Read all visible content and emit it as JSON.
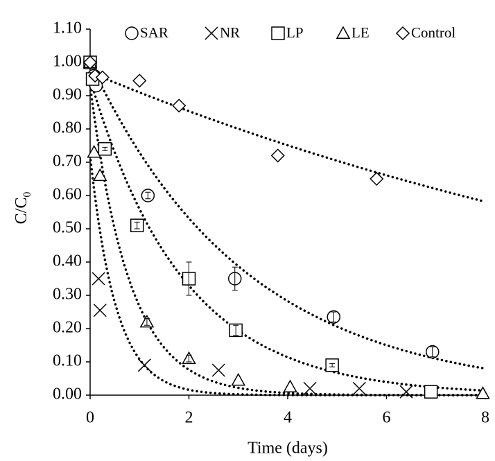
{
  "chart_data": {
    "type": "scatter",
    "xlabel": "Time (days)",
    "ylabel": "C/C",
    "ylabel_sub": "0",
    "xlim": [
      0,
      8
    ],
    "xticks": [
      0,
      2,
      4,
      6,
      8
    ],
    "ylim": [
      0,
      1.1
    ],
    "yticks": [
      {
        "value": 0,
        "label": "0.00"
      },
      {
        "value": 0.1,
        "label": "0.10"
      },
      {
        "value": 0.2,
        "label": "0.20"
      },
      {
        "value": 0.3,
        "label": "0.30"
      },
      {
        "value": 0.4,
        "label": "0.40"
      },
      {
        "value": 0.5,
        "label": "0.50"
      },
      {
        "value": 0.6,
        "label": "0.60"
      },
      {
        "value": 0.7,
        "label": "0.70"
      },
      {
        "value": 0.8,
        "label": "0.80"
      },
      {
        "value": 0.9,
        "label": "0.90"
      },
      {
        "value": 1.0,
        "label": "1.00"
      },
      {
        "value": 1.1,
        "label": "1.10"
      }
    ],
    "legend": "top",
    "series": [
      {
        "name": "SAR",
        "marker": "circle",
        "color": "#000000",
        "x": [
          0,
          0.08,
          0.12,
          1.17,
          2.93,
          4.93,
          6.93
        ],
        "values": [
          1.0,
          0.96,
          0.93,
          0.6,
          0.35,
          0.235,
          0.13
        ],
        "errors": [
          null,
          null,
          null,
          0.01,
          0.035,
          0.015,
          0.015
        ],
        "fit": {
          "a": 1.0,
          "k": 0.316
        }
      },
      {
        "name": "NR",
        "marker": "x",
        "color": "#000000",
        "x": [
          0,
          0.17,
          0.2,
          1.1,
          2.6,
          4.45,
          5.45,
          6.4
        ],
        "values": [
          1.0,
          0.35,
          0.255,
          0.09,
          0.075,
          0.02,
          0.02,
          0.01
        ],
        "errors": [
          null,
          null,
          null,
          null,
          null,
          null,
          null,
          null
        ],
        "fit": {
          "a": 0.72,
          "k": 1.9
        }
      },
      {
        "name": "LP",
        "marker": "square",
        "color": "#000000",
        "x": [
          0,
          0.05,
          0.3,
          0.95,
          2.0,
          2.95,
          4.9,
          6.9
        ],
        "values": [
          1.0,
          0.95,
          0.74,
          0.51,
          0.35,
          0.195,
          0.09,
          0.01
        ],
        "errors": [
          null,
          null,
          0.005,
          0.01,
          0.05,
          0.015,
          0.005,
          null
        ],
        "fit": {
          "a": 0.95,
          "k": 0.53
        }
      },
      {
        "name": "LE",
        "marker": "triangle",
        "color": "#000000",
        "x": [
          0,
          0.08,
          0.2,
          1.15,
          2.0,
          3.0,
          4.05,
          7.95
        ],
        "values": [
          1.0,
          0.73,
          0.66,
          0.22,
          0.11,
          0.045,
          0.025,
          0.005
        ],
        "errors": [
          null,
          null,
          null,
          0.01,
          0.01,
          null,
          null,
          null
        ],
        "fit": {
          "a": 0.93,
          "k": 1.25
        }
      },
      {
        "name": "Control",
        "marker": "diamond",
        "color": "#000000",
        "x": [
          0,
          0.1,
          0.25,
          1.0,
          1.8,
          3.8,
          5.8
        ],
        "values": [
          1.0,
          0.96,
          0.955,
          0.945,
          0.87,
          0.72,
          0.65
        ],
        "errors": [
          null,
          null,
          null,
          null,
          null,
          null,
          null
        ],
        "fit": {
          "a": 0.97,
          "k": 0.064
        }
      }
    ]
  }
}
